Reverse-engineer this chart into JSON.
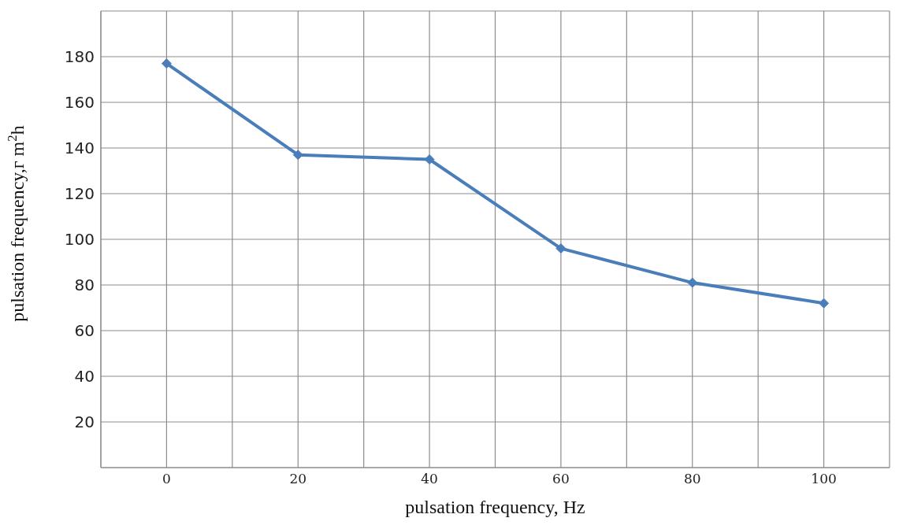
{
  "chart_data": {
    "type": "line",
    "xlabel": "pulsation frequency, Hz",
    "ylabel": "pulsation frequency,г m$^{2}$h",
    "x": [
      0,
      20,
      40,
      60,
      80,
      100
    ],
    "series": [
      {
        "color": "#4a7ebb",
        "values": [
          177,
          137,
          135,
          96,
          81,
          72
        ]
      }
    ],
    "xlim": [
      -10,
      110
    ],
    "xticks": [
      {
        "value": -10,
        "label": null
      },
      0,
      {
        "value": 10,
        "label": null
      },
      20,
      {
        "value": 30,
        "label": null
      },
      40,
      {
        "value": 50,
        "label": null
      },
      60,
      {
        "value": 70,
        "label": null
      },
      80,
      {
        "value": 90,
        "label": null
      },
      100,
      {
        "value": 110,
        "label": null
      }
    ],
    "ylim": [
      0,
      200
    ],
    "yticks": [
      {
        "value": 0,
        "label": null
      },
      20,
      40,
      60,
      80,
      100,
      120,
      140,
      160,
      180,
      {
        "value": 200,
        "label": null
      }
    ],
    "grid": true,
    "marker": "diamond",
    "line_style": "solid",
    "legend": false
  }
}
